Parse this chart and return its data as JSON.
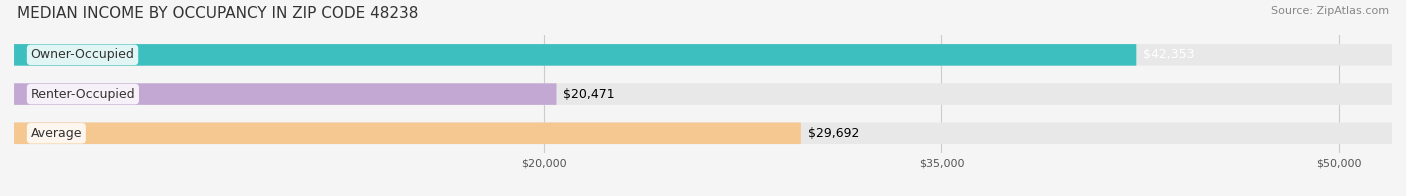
{
  "title": "MEDIAN INCOME BY OCCUPANCY IN ZIP CODE 48238",
  "source": "Source: ZipAtlas.com",
  "categories": [
    "Owner-Occupied",
    "Renter-Occupied",
    "Average"
  ],
  "values": [
    42353,
    20471,
    29692
  ],
  "bar_colors": [
    "#3dbfbf",
    "#c4a8d4",
    "#f5c891"
  ],
  "bar_bg_color": "#e8e8e8",
  "label_texts": [
    "$42,353",
    "$20,471",
    "$29,692"
  ],
  "bar_label_colors": [
    "white",
    "black",
    "black"
  ],
  "xlim": [
    0,
    52000
  ],
  "xticks": [
    20000,
    35000,
    50000
  ],
  "xtick_labels": [
    "$20,000",
    "$35,000",
    "$50,000"
  ],
  "title_fontsize": 11,
  "source_fontsize": 8,
  "label_fontsize": 9,
  "cat_fontsize": 9,
  "bar_height": 0.55,
  "background_color": "#f5f5f5",
  "grid_color": "#cccccc"
}
